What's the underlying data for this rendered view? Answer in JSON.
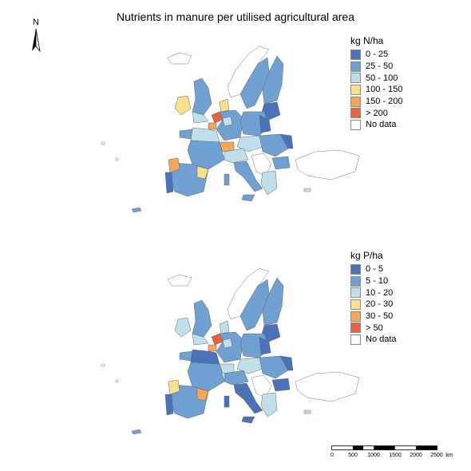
{
  "title": "Nutrients in manure per utilised agricultural area",
  "north_arrow": {
    "letter": "N",
    "icon": "north-arrow-icon"
  },
  "maps": [
    {
      "id": "nitrogen",
      "legend_title": "kg N/ha",
      "classes": [
        {
          "label": "0 - 25",
          "color": "#4a72b8"
        },
        {
          "label": "25 - 50",
          "color": "#6ea1d2"
        },
        {
          "label": "50 - 100",
          "color": "#bfe0ea"
        },
        {
          "label": "100 - 150",
          "color": "#fbe08c"
        },
        {
          "label": "150 - 200",
          "color": "#f5a65b"
        },
        {
          "label": "> 200",
          "color": "#e8623b"
        },
        {
          "label": "No data",
          "color": "#ffffff"
        }
      ]
    },
    {
      "id": "phosphorus",
      "legend_title": "kg P/ha",
      "classes": [
        {
          "label": "0 - 5",
          "color": "#4a72b8"
        },
        {
          "label": "5 - 10",
          "color": "#6ea1d2"
        },
        {
          "label": "10 - 20",
          "color": "#bfe0ea"
        },
        {
          "label": "20 - 30",
          "color": "#fbe08c"
        },
        {
          "label": "30 - 50",
          "color": "#f5a65b"
        },
        {
          "label": "> 50",
          "color": "#e8623b"
        },
        {
          "label": "No data",
          "color": "#ffffff"
        }
      ]
    }
  ],
  "scale_bar": {
    "ticks": [
      "0",
      "500",
      "1000",
      "1500",
      "2000",
      "2500"
    ],
    "unit": "km"
  }
}
